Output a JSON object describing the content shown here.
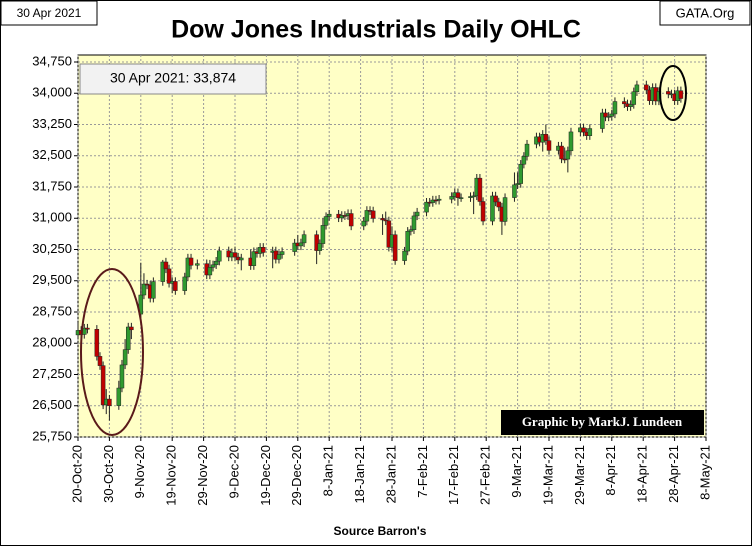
{
  "chart_data": {
    "type": "candlestick",
    "title": "Dow Jones Industrials Daily OHLC",
    "corner_left": "30 Apr 2021",
    "corner_right": "GATA.Org",
    "last_label": "30 Apr 2021:  33,874",
    "credit": "Graphic by MarkJ. Lundeen",
    "x_label": "Source Barron's",
    "up_color": "#2f9a2f",
    "down_color": "#c00000",
    "grid": true,
    "x": [
      "2020-10-20",
      "2020-10-21",
      "2020-10-22",
      "2020-10-23",
      "2020-10-26",
      "2020-10-27",
      "2020-10-28",
      "2020-10-29",
      "2020-10-30",
      "2020-11-02",
      "2020-11-03",
      "2020-11-04",
      "2020-11-05",
      "2020-11-06",
      "2020-11-09",
      "2020-11-10",
      "2020-11-11",
      "2020-11-12",
      "2020-11-13",
      "2020-11-16",
      "2020-11-17",
      "2020-11-18",
      "2020-11-19",
      "2020-11-20",
      "2020-11-23",
      "2020-11-24",
      "2020-11-25",
      "2020-11-27",
      "2020-11-30",
      "2020-12-01",
      "2020-12-02",
      "2020-12-03",
      "2020-12-04",
      "2020-12-07",
      "2020-12-08",
      "2020-12-09",
      "2020-12-10",
      "2020-12-11",
      "2020-12-14",
      "2020-12-15",
      "2020-12-16",
      "2020-12-17",
      "2020-12-18",
      "2020-12-21",
      "2020-12-22",
      "2020-12-23",
      "2020-12-24",
      "2020-12-28",
      "2020-12-29",
      "2020-12-30",
      "2020-12-31",
      "2021-01-04",
      "2021-01-05",
      "2021-01-06",
      "2021-01-07",
      "2021-01-08",
      "2021-01-11",
      "2021-01-12",
      "2021-01-13",
      "2021-01-14",
      "2021-01-15",
      "2021-01-19",
      "2021-01-20",
      "2021-01-21",
      "2021-01-22",
      "2021-01-25",
      "2021-01-26",
      "2021-01-27",
      "2021-01-28",
      "2021-01-29",
      "2021-02-01",
      "2021-02-02",
      "2021-02-03",
      "2021-02-04",
      "2021-02-05",
      "2021-02-08",
      "2021-02-09",
      "2021-02-10",
      "2021-02-11",
      "2021-02-12",
      "2021-02-16",
      "2021-02-17",
      "2021-02-18",
      "2021-02-19",
      "2021-02-22",
      "2021-02-23",
      "2021-02-24",
      "2021-02-25",
      "2021-02-26",
      "2021-03-01",
      "2021-03-02",
      "2021-03-03",
      "2021-03-04",
      "2021-03-05",
      "2021-03-08",
      "2021-03-09",
      "2021-03-10",
      "2021-03-11",
      "2021-03-12",
      "2021-03-15",
      "2021-03-16",
      "2021-03-17",
      "2021-03-18",
      "2021-03-19",
      "2021-03-22",
      "2021-03-23",
      "2021-03-24",
      "2021-03-25",
      "2021-03-26",
      "2021-03-29",
      "2021-03-30",
      "2021-03-31",
      "2021-04-01",
      "2021-04-05",
      "2021-04-06",
      "2021-04-07",
      "2021-04-08",
      "2021-04-09",
      "2021-04-12",
      "2021-04-13",
      "2021-04-14",
      "2021-04-15",
      "2021-04-16",
      "2021-04-19",
      "2021-04-20",
      "2021-04-21",
      "2021-04-22",
      "2021-04-23",
      "2021-04-26",
      "2021-04-27",
      "2021-04-28",
      "2021-04-29",
      "2021-04-30"
    ],
    "open": [
      28200,
      28308,
      28211,
      28364,
      28336,
      27685,
      27463,
      26520,
      26659,
      26502,
      26925,
      27480,
      27847,
      28390,
      28700,
      29158,
      29421,
      29398,
      29080,
      29480,
      29950,
      29784,
      29438,
      29483,
      29263,
      29591,
      30046,
      29872,
      29910,
      29639,
      29823,
      29883,
      29970,
      30218,
      30070,
      30174,
      30068,
      29999,
      30046,
      29862,
      30199,
      30155,
      30303,
      30179,
      30216,
      30015,
      30129,
      30200,
      30404,
      30336,
      30409,
      30606,
      30224,
      30392,
      30829,
      31041,
      31098,
      31009,
      31068,
      31061,
      31113,
      30814,
      30931,
      31188,
      31176,
      30997,
      30960,
      30937,
      30303,
      30604,
      29983,
      30212,
      30688,
      30724,
      31056,
      31148,
      31386,
      31376,
      31438,
      31431,
      31458,
      31523,
      31613,
      31494,
      31494,
      31522,
      31537,
      31962,
      31402,
      30932,
      31535,
      31391,
      31270,
      30924,
      31496,
      31802,
      31833,
      32297,
      32486,
      32779,
      32953,
      32826,
      33015,
      32862,
      32628,
      32732,
      32423,
      32420,
      32619,
      33072,
      33171,
      33067,
      32981,
      33153,
      33527,
      33430,
      33446,
      33503,
      33801,
      33746,
      33678,
      33730,
      34036,
      34201,
      34078,
      33821,
      34137,
      33815,
      34043,
      33981,
      33985,
      33820,
      34060
    ],
    "high": [
      28500,
      28408,
      28464,
      28464,
      28436,
      27785,
      27563,
      26900,
      26759,
      27100,
      27600,
      28100,
      28490,
      28490,
      29933,
      29680,
      29521,
      29498,
      29580,
      30000,
      30050,
      29884,
      29583,
      29583,
      29691,
      30146,
      30146,
      30010,
      30010,
      30000,
      29983,
      30070,
      30318,
      30318,
      30274,
      30320,
      30168,
      30146,
      30250,
      30299,
      30299,
      30403,
      30403,
      30316,
      30316,
      30229,
      30300,
      30504,
      30600,
      30509,
      30706,
      30706,
      30492,
      31000,
      31141,
      31198,
      31198,
      31168,
      31168,
      31213,
      31213,
      31031,
      31288,
      31288,
      31276,
      31097,
      31160,
      31037,
      30804,
      30704,
      30312,
      30788,
      30824,
      31156,
      31248,
      31486,
      31486,
      31538,
      31538,
      31558,
      31623,
      31713,
      31713,
      31594,
      31622,
      31637,
      32062,
      32062,
      31502,
      31635,
      31635,
      31491,
      31370,
      31596,
      32100,
      32100,
      32397,
      32586,
      32879,
      33053,
      33053,
      33115,
      33250,
      32962,
      32832,
      32832,
      32700,
      32719,
      33172,
      33271,
      33271,
      33167,
      33253,
      33627,
      33627,
      33546,
      33603,
      33901,
      33901,
      33846,
      33830,
      34136,
      34301,
      34301,
      34178,
      34237,
      34237,
      34143,
      34143,
      34085,
      34085,
      34160,
      34160
    ],
    "low": [
      28100,
      28111,
      28111,
      28236,
      27585,
      27363,
      26420,
      26300,
      26144,
      26402,
      26825,
      27380,
      27747,
      28100,
      28600,
      29058,
      29298,
      28980,
      28980,
      29380,
      29684,
      29338,
      29200,
      29163,
      29163,
      29491,
      29772,
      29772,
      29539,
      29539,
      29723,
      29783,
      29870,
      29970,
      29970,
      29968,
      29899,
      29750,
      29762,
      29762,
      30055,
      30055,
      30079,
      29800,
      29915,
      29915,
      30029,
      30100,
      30236,
      30236,
      30309,
      29900,
      30124,
      30292,
      30729,
      30941,
      30909,
      30909,
      30961,
      30961,
      30714,
      30714,
      30831,
      31076,
      30897,
      30600,
      30837,
      30203,
      30203,
      29883,
      29883,
      30112,
      30588,
      30624,
      30956,
      31048,
      31276,
      31276,
      31331,
      31331,
      31358,
      31423,
      31300,
      31394,
      31394,
      31100,
      31437,
      31302,
      30832,
      30832,
      31291,
      31170,
      30600,
      30824,
      31396,
      31702,
      31733,
      32197,
      32386,
      32679,
      32726,
      32600,
      32762,
      32528,
      32528,
      32323,
      32320,
      32100,
      32519,
      32972,
      32967,
      32881,
      32881,
      33053,
      33330,
      33330,
      33346,
      33403,
      33646,
      33578,
      33578,
      33630,
      33936,
      33978,
      33721,
      33721,
      33715,
      33715,
      33881,
      33881,
      33720,
      33720,
      33774
    ],
    "close": [
      28308,
      28211,
      28364,
      28336,
      27685,
      27463,
      26520,
      26659,
      26502,
      26925,
      27480,
      27847,
      28390,
      28323,
      29158,
      29421,
      29398,
      29080,
      29480,
      29950,
      29784,
      29438,
      29483,
      29263,
      29591,
      30046,
      29872,
      29910,
      29639,
      29823,
      29883,
      29970,
      30218,
      30070,
      30174,
      30068,
      29999,
      30046,
      29862,
      30199,
      30155,
      30303,
      30179,
      30216,
      30015,
      30129,
      30200,
      30404,
      30336,
      30409,
      30606,
      30224,
      30392,
      30829,
      31041,
      31098,
      31009,
      31068,
      31061,
      31113,
      30814,
      30931,
      31188,
      31176,
      30997,
      30960,
      30937,
      30303,
      30604,
      29983,
      30212,
      30688,
      30724,
      31056,
      31148,
      31386,
      31376,
      31438,
      31431,
      31458,
      31523,
      31613,
      31494,
      31494,
      31522,
      31537,
      31962,
      31402,
      30932,
      31535,
      31391,
      31270,
      30924,
      31496,
      31802,
      31833,
      32297,
      32486,
      32779,
      32953,
      32826,
      33015,
      32862,
      32628,
      32732,
      32423,
      32420,
      32619,
      33072,
      33171,
      33067,
      32981,
      33153,
      33527,
      33430,
      33446,
      33503,
      33801,
      33746,
      33678,
      33730,
      34036,
      34201,
      34078,
      33821,
      34137,
      33815,
      34043,
      33981,
      33985,
      33820,
      34060,
      33874
    ],
    "xlim": [
      "2020-10-20",
      "2021-05-08"
    ],
    "xticks": [
      {
        "value": "2020-10-20",
        "label": "20-Oct-20"
      },
      {
        "value": "2020-10-30",
        "label": "30-Oct-20"
      },
      {
        "value": "2020-11-09",
        "label": "9-Nov-20"
      },
      {
        "value": "2020-11-19",
        "label": "19-Nov-20"
      },
      {
        "value": "2020-11-29",
        "label": "29-Nov-20"
      },
      {
        "value": "2020-12-09",
        "label": "9-Dec-20"
      },
      {
        "value": "2020-12-19",
        "label": "19-Dec-20"
      },
      {
        "value": "2020-12-29",
        "label": "29-Dec-20"
      },
      {
        "value": "2021-01-08",
        "label": "8-Jan-21"
      },
      {
        "value": "2021-01-18",
        "label": "18-Jan-21"
      },
      {
        "value": "2021-01-28",
        "label": "28-Jan-21"
      },
      {
        "value": "2021-02-07",
        "label": "7-Feb-21"
      },
      {
        "value": "2021-02-17",
        "label": "17-Feb-21"
      },
      {
        "value": "2021-02-27",
        "label": "27-Feb-21"
      },
      {
        "value": "2021-03-09",
        "label": "9-Mar-21"
      },
      {
        "value": "2021-03-19",
        "label": "19-Mar-21"
      },
      {
        "value": "2021-03-29",
        "label": "29-Mar-21"
      },
      {
        "value": "2021-04-08",
        "label": "8-Apr-21"
      },
      {
        "value": "2021-04-18",
        "label": "18-Apr-21"
      },
      {
        "value": "2021-04-28",
        "label": "28-Apr-21"
      },
      {
        "value": "2021-05-08",
        "label": "8-May-21"
      }
    ],
    "ylim": [
      25750,
      34750
    ],
    "yticks": [
      {
        "value": 25750,
        "label": "25,750"
      },
      {
        "value": 26500,
        "label": "26,500"
      },
      {
        "value": 27250,
        "label": "27,250"
      },
      {
        "value": 28000,
        "label": "28,000"
      },
      {
        "value": 28750,
        "label": "28,750"
      },
      {
        "value": 29500,
        "label": "29,500"
      },
      {
        "value": 30250,
        "label": "30,250"
      },
      {
        "value": 31000,
        "label": "31,000"
      },
      {
        "value": 31750,
        "label": "31,750"
      },
      {
        "value": 32500,
        "label": "32,500"
      },
      {
        "value": 33250,
        "label": "33,250"
      },
      {
        "value": 34000,
        "label": "34,000"
      },
      {
        "value": 34750,
        "label": "34,750"
      }
    ]
  }
}
